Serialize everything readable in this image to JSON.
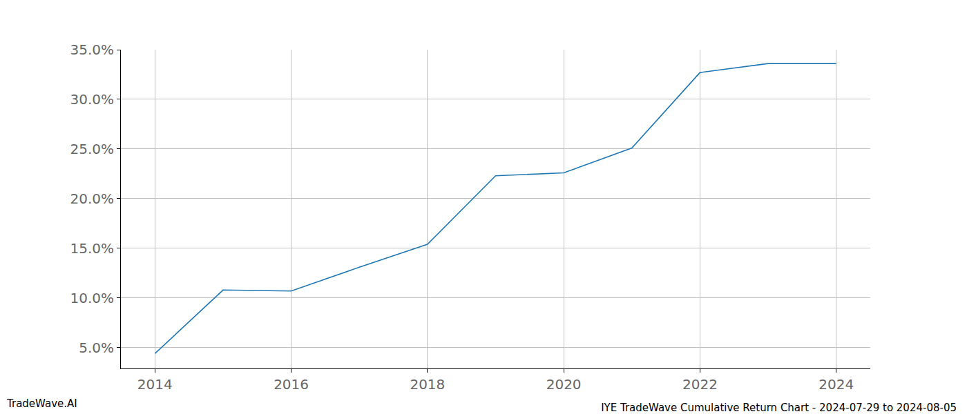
{
  "chart_data": {
    "type": "line",
    "title": "IYE TradeWave Cumulative Return Chart - 2024-07-29 to 2024-08-05",
    "source": "TradeWave.AI",
    "x": [
      2014,
      2015,
      2016,
      2017,
      2018,
      2019,
      2020,
      2021,
      2022,
      2023,
      2024
    ],
    "series": [
      {
        "color": "#1f77b4",
        "values": [
          4.4,
          10.8,
          10.7,
          13.1,
          15.4,
          22.3,
          22.6,
          25.1,
          32.7,
          33.6,
          33.6
        ]
      }
    ],
    "xlim": [
      2013.5,
      2024.5
    ],
    "xticks": [
      2014,
      2016,
      2018,
      2020,
      2022,
      2024
    ],
    "ylim": [
      2.9,
      35
    ],
    "yticks": [
      {
        "value": 5,
        "label": "5.0%"
      },
      {
        "value": 10,
        "label": "10.0%"
      },
      {
        "value": 15,
        "label": "15.0%"
      },
      {
        "value": 20,
        "label": "20.0%"
      },
      {
        "value": 25,
        "label": "25.0%"
      },
      {
        "value": 30,
        "label": "30.0%"
      },
      {
        "value": 35,
        "label": "35.0%"
      }
    ],
    "grid": true
  }
}
